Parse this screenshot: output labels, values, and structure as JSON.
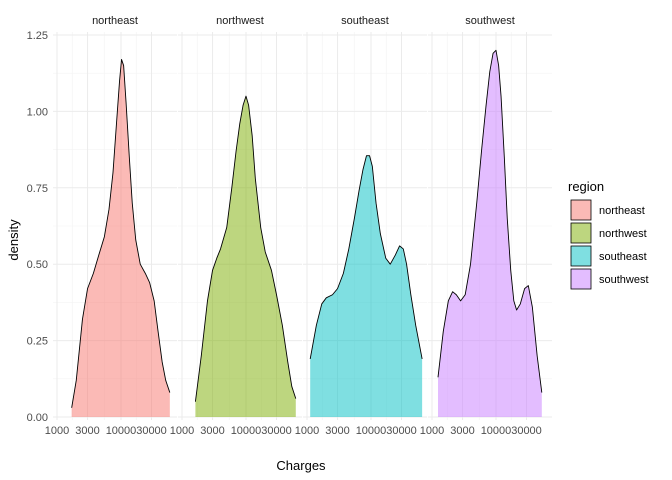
{
  "chart_data": {
    "type": "area",
    "subtype": "faceted density plot",
    "xlabel": "Charges",
    "ylabel": "density",
    "x_scale": "log10",
    "x_ticks": [
      1000,
      3000,
      10000,
      30000
    ],
    "x_tick_labels": [
      "1000",
      "3000",
      "10000",
      "30000"
    ],
    "xlim": [
      1000,
      65000
    ],
    "ylim": [
      0,
      1.25
    ],
    "y_ticks": [
      0,
      0.25,
      0.5,
      0.75,
      1.0,
      1.25
    ],
    "y_tick_labels": [
      "0.00",
      "0.25",
      "0.50",
      "0.75",
      "1.00",
      "1.25"
    ],
    "grid": true,
    "fill_alpha": 0.5,
    "legend": {
      "title": "region",
      "position": "right",
      "entries": [
        "northeast",
        "northwest",
        "southeast",
        "southwest"
      ]
    },
    "series": [
      {
        "name": "northeast",
        "color": "#F8766D",
        "x": [
          1695,
          2000,
          2500,
          3000,
          3700,
          4500,
          5500,
          6500,
          7500,
          8500,
          9500,
          10200,
          11000,
          12000,
          13500,
          15000,
          17000,
          20000,
          24000,
          28000,
          33000,
          38000,
          44000,
          50000,
          58000
        ],
        "y": [
          0.03,
          0.12,
          0.32,
          0.42,
          0.47,
          0.53,
          0.59,
          0.68,
          0.8,
          0.96,
          1.1,
          1.17,
          1.15,
          1.03,
          0.85,
          0.7,
          0.58,
          0.5,
          0.47,
          0.44,
          0.38,
          0.28,
          0.18,
          0.12,
          0.08
        ]
      },
      {
        "name": "northwest",
        "color": "#7CAE00",
        "x": [
          1620,
          2000,
          2500,
          3000,
          3500,
          4000,
          5000,
          6000,
          7000,
          8000,
          9000,
          10000,
          11000,
          12500,
          14000,
          17000,
          20000,
          25000,
          30000,
          37000,
          45000,
          52000,
          60000
        ],
        "y": [
          0.05,
          0.2,
          0.38,
          0.48,
          0.52,
          0.55,
          0.62,
          0.75,
          0.87,
          0.96,
          1.02,
          1.05,
          1.02,
          0.92,
          0.78,
          0.62,
          0.54,
          0.48,
          0.4,
          0.3,
          0.18,
          0.1,
          0.06
        ]
      },
      {
        "name": "southeast",
        "color": "#00BFC4",
        "x": [
          1122,
          1400,
          1700,
          2000,
          2500,
          3000,
          3700,
          4500,
          5500,
          6500,
          7500,
          8500,
          9500,
          10500,
          12000,
          14000,
          17000,
          20000,
          24000,
          28000,
          32000,
          36000,
          42000,
          50000,
          63000
        ],
        "y": [
          0.19,
          0.3,
          0.37,
          0.39,
          0.4,
          0.42,
          0.47,
          0.55,
          0.65,
          0.74,
          0.81,
          0.855,
          0.855,
          0.82,
          0.7,
          0.6,
          0.52,
          0.5,
          0.53,
          0.56,
          0.55,
          0.5,
          0.4,
          0.3,
          0.19
        ]
      },
      {
        "name": "southwest",
        "color": "#C77CFF",
        "x": [
          1241,
          1500,
          1800,
          2100,
          2400,
          2800,
          3300,
          4000,
          5000,
          6000,
          7000,
          8000,
          9000,
          10000,
          11000,
          12000,
          13500,
          15000,
          17000,
          19000,
          21000,
          24000,
          28000,
          32000,
          37000,
          44000,
          52000
        ],
        "y": [
          0.13,
          0.28,
          0.38,
          0.41,
          0.4,
          0.38,
          0.4,
          0.5,
          0.7,
          0.88,
          1.02,
          1.13,
          1.19,
          1.2,
          1.15,
          1.05,
          0.85,
          0.65,
          0.48,
          0.38,
          0.35,
          0.37,
          0.42,
          0.43,
          0.36,
          0.2,
          0.08
        ]
      }
    ]
  }
}
